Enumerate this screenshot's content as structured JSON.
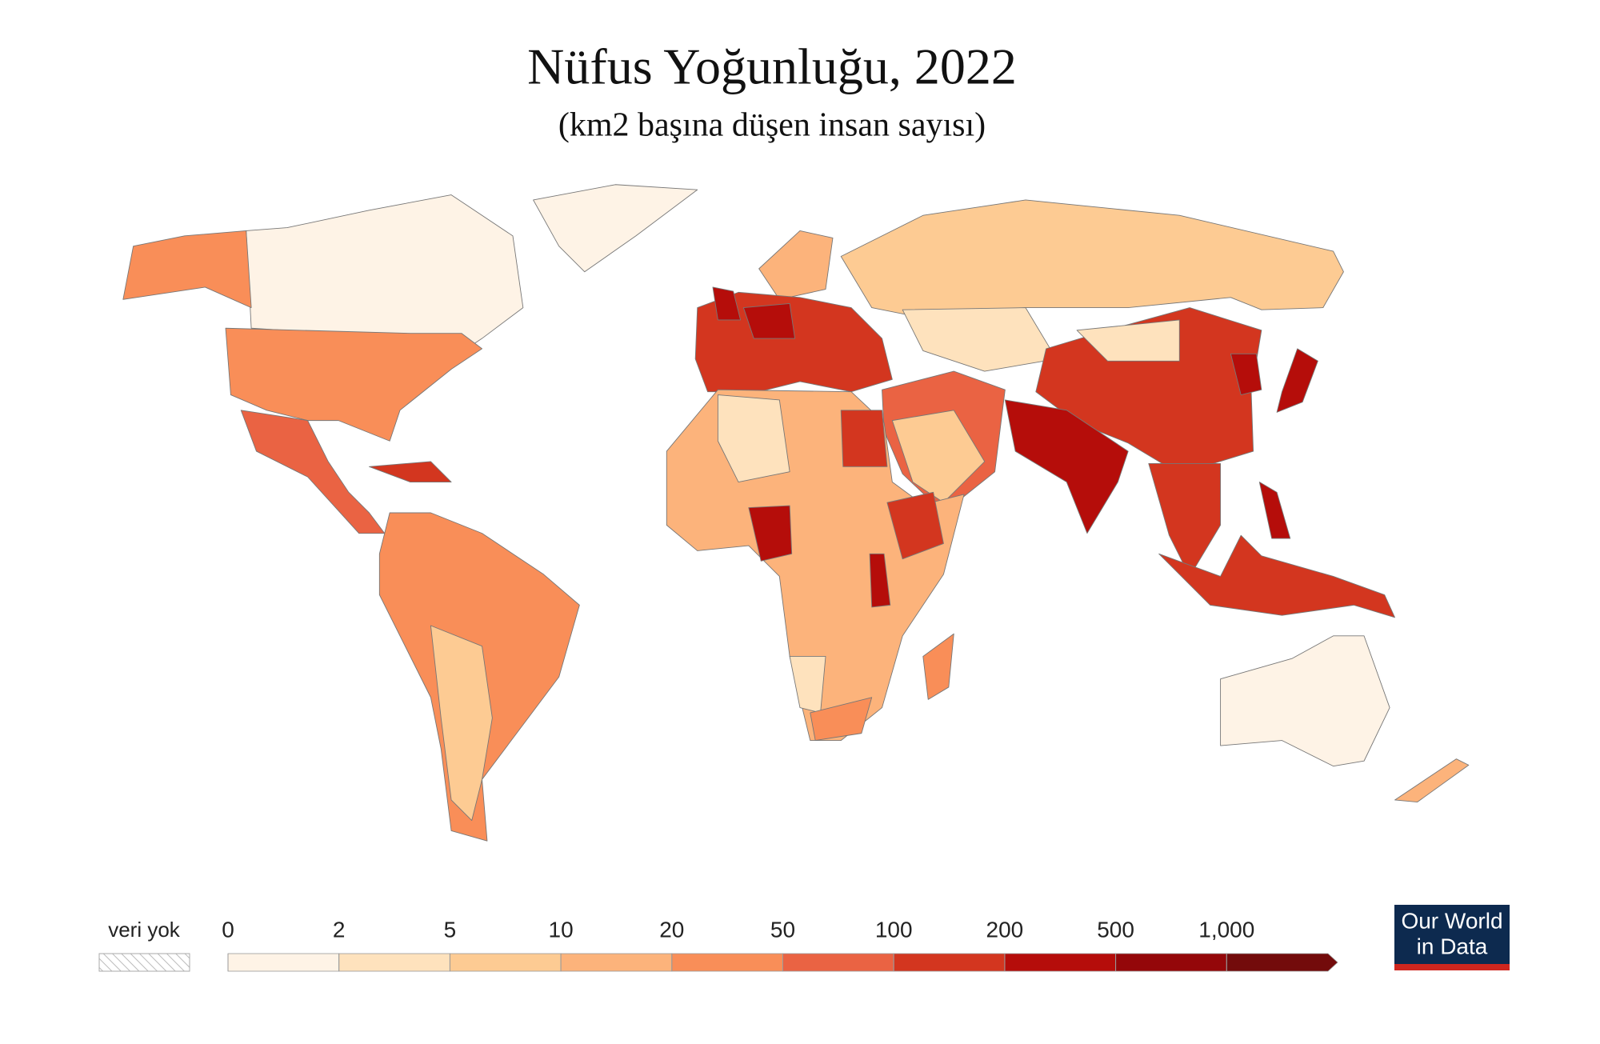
{
  "chart_data": {
    "type": "map",
    "title": "Nüfus Yoğunluğu, 2022",
    "subtitle": "(km2 başına düşen insan sayısı)",
    "no_data_label": "veri yok",
    "ticks": [
      0,
      2,
      5,
      10,
      20,
      50,
      100,
      200,
      500,
      {
        "value": 1000,
        "label": "1,000"
      }
    ],
    "colors": [
      "#fef3e6",
      "#fee2bd",
      "#fdcb93",
      "#fcb37b",
      "#f98e58",
      "#ea6343",
      "#d3361f",
      "#b50d0a",
      "#940709",
      "#730b0b"
    ],
    "logo": [
      "Our World",
      "in Data"
    ]
  }
}
